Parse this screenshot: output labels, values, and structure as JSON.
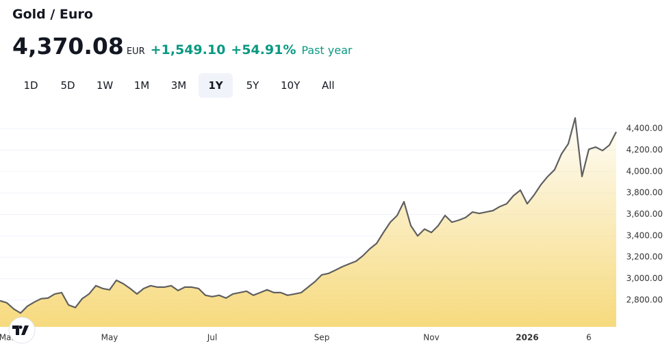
{
  "header": {
    "title": "Gold / Euro",
    "price": "4,370.08",
    "currency": "EUR",
    "change": "+1,549.10",
    "change_percent": "+54.91%",
    "period": "Past year"
  },
  "range_buttons": {
    "labels": [
      "1D",
      "5D",
      "1W",
      "1M",
      "3M",
      "1Y",
      "5Y",
      "10Y",
      "All"
    ],
    "selected_index": 5
  },
  "chart_data": {
    "type": "line",
    "categories": [
      null,
      "Mar",
      null,
      null,
      null,
      null,
      null,
      null,
      null,
      null,
      null,
      null,
      null,
      null,
      null,
      null,
      "May",
      null,
      null,
      null,
      null,
      null,
      null,
      null,
      null,
      null,
      null,
      null,
      null,
      null,
      null,
      "Jul",
      null,
      null,
      null,
      null,
      null,
      null,
      null,
      null,
      null,
      null,
      null,
      null,
      null,
      null,
      null,
      "Sep",
      null,
      null,
      null,
      null,
      null,
      null,
      null,
      null,
      null,
      null,
      null,
      null,
      null,
      null,
      null,
      "Nov",
      null,
      null,
      null,
      null,
      null,
      null,
      null,
      null,
      null,
      null,
      null,
      null,
      null,
      "2026",
      null,
      null,
      null,
      null,
      null,
      null,
      null,
      null,
      "6",
      null,
      null,
      null,
      null
    ],
    "series": [
      {
        "name": "Gold / Euro",
        "color": "#5f5f5f",
        "values": [
          2794,
          2775,
          2717,
          2679,
          2743,
          2781,
          2813,
          2819,
          2857,
          2870,
          2755,
          2730,
          2813,
          2857,
          2934,
          2908,
          2896,
          2985,
          2953,
          2908,
          2857,
          2908,
          2934,
          2921,
          2921,
          2934,
          2889,
          2921,
          2921,
          2908,
          2845,
          2832,
          2845,
          2819,
          2857,
          2870,
          2883,
          2845,
          2870,
          2896,
          2870,
          2870,
          2845,
          2857,
          2870,
          2921,
          2972,
          3036,
          3049,
          3080,
          3112,
          3138,
          3163,
          3214,
          3278,
          3329,
          3431,
          3527,
          3590,
          3718,
          3495,
          3399,
          3463,
          3431,
          3495,
          3590,
          3527,
          3546,
          3571,
          3622,
          3609,
          3622,
          3635,
          3673,
          3699,
          3775,
          3826,
          3699,
          3781,
          3877,
          3954,
          4017,
          4164,
          4259,
          4500,
          3954,
          4208,
          4228,
          4196,
          4247,
          4370.08
        ]
      }
    ],
    "ylim": [
      2550,
      4580
    ],
    "yticks": [
      {
        "value": 2800,
        "label": "2,800.00"
      },
      {
        "value": 3000,
        "label": "3,000.00"
      },
      {
        "value": 3200,
        "label": "3,200.00"
      },
      {
        "value": 3400,
        "label": "3,400.00"
      },
      {
        "value": 3600,
        "label": "3,600.00"
      },
      {
        "value": 3800,
        "label": "3,800.00"
      },
      {
        "value": 4000,
        "label": "4,000.00"
      },
      {
        "value": 4200,
        "label": "4,200.00"
      },
      {
        "value": 4400,
        "label": "4,400.00"
      }
    ],
    "grid": true,
    "fill_color": "#f6d877"
  }
}
